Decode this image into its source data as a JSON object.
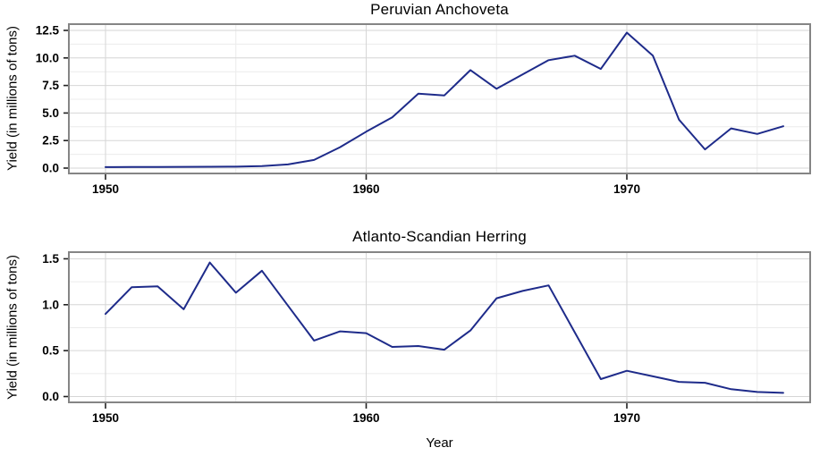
{
  "figure": {
    "xlabel": "Year"
  },
  "colors": {
    "line": "#1e2b8a",
    "panel_border": "#858585",
    "grid_major": "#d6d6d6",
    "grid_minor": "#ececec",
    "tick": "#222222",
    "text": "#000000"
  },
  "chart_data": [
    {
      "type": "line",
      "title": "Peruvian Anchoveta",
      "ylabel": "Yield (in millions of tons)",
      "x": [
        1950,
        1951,
        1952,
        1953,
        1954,
        1955,
        1956,
        1957,
        1958,
        1959,
        1960,
        1961,
        1962,
        1963,
        1964,
        1965,
        1966,
        1967,
        1968,
        1969,
        1970,
        1971,
        1972,
        1973,
        1974,
        1975,
        1976
      ],
      "values": [
        0.09,
        0.1,
        0.1,
        0.11,
        0.12,
        0.13,
        0.18,
        0.33,
        0.74,
        1.9,
        3.3,
        4.6,
        6.75,
        6.6,
        8.9,
        7.2,
        8.5,
        9.8,
        10.2,
        9.0,
        12.3,
        10.2,
        4.4,
        1.7,
        3.6,
        3.1,
        3.8
      ],
      "ylim": [
        0,
        12.5
      ],
      "yticks": [
        0,
        2.5,
        5,
        7.5,
        10,
        12.5
      ],
      "ytick_labels": [
        "0.0",
        "2.5",
        "5.0",
        "7.5",
        "10.0",
        "12.5"
      ],
      "yticks_minor": [
        1.25,
        3.75,
        6.25,
        8.75,
        11.25
      ],
      "xticks": [
        1950,
        1960,
        1970
      ],
      "xtick_labels": [
        "1950",
        "1960",
        "1970"
      ],
      "xticks_minor": [
        1955,
        1965,
        1975
      ],
      "grid": true,
      "legend": false
    },
    {
      "type": "line",
      "title": "Atlanto-Scandian Herring",
      "ylabel": "Yield (in millions of tons)",
      "x": [
        1950,
        1951,
        1952,
        1953,
        1954,
        1955,
        1956,
        1957,
        1958,
        1959,
        1960,
        1961,
        1962,
        1963,
        1964,
        1965,
        1966,
        1967,
        1968,
        1969,
        1970,
        1971,
        1972,
        1973,
        1974,
        1975,
        1976
      ],
      "values": [
        0.9,
        1.19,
        1.2,
        0.95,
        1.46,
        1.13,
        1.37,
        0.99,
        0.61,
        0.71,
        0.69,
        0.54,
        0.55,
        0.51,
        0.72,
        1.07,
        1.15,
        1.21,
        0.7,
        0.19,
        0.28,
        0.22,
        0.16,
        0.15,
        0.08,
        0.05,
        0.04
      ],
      "ylim": [
        0,
        1.5
      ],
      "yticks": [
        0,
        0.5,
        1.0,
        1.5
      ],
      "ytick_labels": [
        "0.0",
        "0.5",
        "1.0",
        "1.5"
      ],
      "yticks_minor": [
        0.25,
        0.75,
        1.25
      ],
      "xticks": [
        1950,
        1960,
        1970
      ],
      "xtick_labels": [
        "1950",
        "1960",
        "1970"
      ],
      "xticks_minor": [
        1955,
        1965,
        1975
      ],
      "grid": true,
      "legend": false
    }
  ]
}
